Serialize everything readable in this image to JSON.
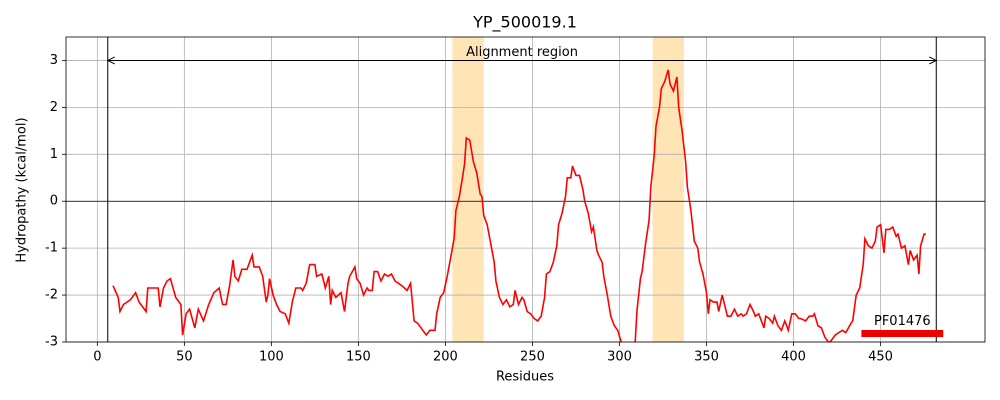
{
  "chart_data": {
    "type": "line",
    "title": "YP_500019.1",
    "xlabel": "Residues",
    "ylabel": "Hydropathy (kcal/mol)",
    "x": [
      9,
      12,
      13,
      15,
      19,
      22,
      24,
      28,
      29,
      35,
      36,
      38,
      40,
      42,
      45,
      48,
      49,
      51,
      53,
      56,
      58,
      61,
      64,
      67,
      70,
      72,
      74,
      76,
      78,
      79,
      81,
      83,
      86,
      89,
      90,
      93,
      95,
      97,
      98,
      99,
      101,
      103,
      105,
      108,
      110,
      112,
      114,
      117,
      118,
      120,
      122,
      125,
      126,
      129,
      131,
      133,
      134,
      135,
      137,
      140,
      142,
      144,
      145,
      148,
      149,
      151,
      153,
      155,
      156,
      158,
      159,
      161,
      163,
      165,
      167,
      169,
      171,
      173,
      175,
      178,
      180,
      182,
      184,
      187,
      189,
      191,
      194,
      195,
      197,
      199,
      201,
      203,
      205,
      206,
      208,
      210,
      211,
      212,
      214,
      216,
      218,
      220,
      221,
      222,
      224,
      226,
      228,
      229,
      231,
      233,
      235,
      237,
      239,
      240,
      242,
      244,
      245,
      247,
      249,
      251,
      253,
      255,
      257,
      258,
      260,
      262,
      264,
      265,
      267,
      269,
      270,
      272,
      273,
      275,
      277,
      279,
      280,
      282,
      284,
      285,
      287,
      288,
      290,
      291,
      293,
      295,
      297,
      299,
      301,
      302,
      306,
      309,
      310,
      312,
      313,
      315,
      317,
      318,
      320,
      321,
      323,
      324,
      326,
      328,
      329,
      331,
      333,
      334,
      336,
      338,
      339,
      341,
      343,
      345,
      346,
      348,
      350,
      351,
      352,
      354,
      356,
      357,
      359,
      361,
      362,
      364,
      366,
      368,
      370,
      371,
      373,
      375,
      377,
      378,
      380,
      383,
      384,
      386,
      388,
      389,
      391,
      393,
      395,
      397,
      399,
      401,
      403,
      404,
      407,
      409,
      411,
      412,
      414,
      416,
      418,
      420,
      421,
      424,
      426,
      428,
      430,
      433,
      434,
      436,
      438,
      440,
      441,
      443,
      445,
      447,
      448,
      450,
      452,
      453,
      455,
      457,
      459,
      460,
      462,
      464,
      466,
      467,
      469,
      471,
      472,
      473,
      475,
      476
    ],
    "values": [
      -1.8,
      -2.05,
      -2.35,
      -2.2,
      -2.1,
      -1.95,
      -2.15,
      -2.35,
      -1.85,
      -1.85,
      -2.25,
      -1.85,
      -1.7,
      -1.65,
      -2.05,
      -2.2,
      -2.85,
      -2.4,
      -2.3,
      -2.7,
      -2.3,
      -2.55,
      -2.2,
      -1.95,
      -1.85,
      -2.2,
      -2.2,
      -1.8,
      -1.25,
      -1.6,
      -1.7,
      -1.45,
      -1.45,
      -1.15,
      -1.4,
      -1.4,
      -1.6,
      -2.15,
      -2.0,
      -1.65,
      -2.0,
      -2.2,
      -2.35,
      -2.4,
      -2.6,
      -2.15,
      -1.85,
      -1.85,
      -1.9,
      -1.75,
      -1.35,
      -1.35,
      -1.6,
      -1.55,
      -1.85,
      -1.6,
      -2.2,
      -1.9,
      -2.05,
      -1.95,
      -2.35,
      -1.75,
      -1.6,
      -1.4,
      -1.65,
      -1.75,
      -2.0,
      -1.85,
      -1.9,
      -1.9,
      -1.5,
      -1.5,
      -1.7,
      -1.55,
      -1.6,
      -1.55,
      -1.7,
      -1.75,
      -1.8,
      -1.9,
      -1.75,
      -2.55,
      -2.6,
      -2.75,
      -2.85,
      -2.75,
      -2.75,
      -2.4,
      -2.05,
      -1.95,
      -1.6,
      -1.2,
      -0.8,
      -0.2,
      0.1,
      0.55,
      0.8,
      1.35,
      1.3,
      0.85,
      0.6,
      0.15,
      0.1,
      -0.3,
      -0.5,
      -0.9,
      -1.3,
      -1.7,
      -2.05,
      -2.2,
      -2.1,
      -2.25,
      -2.2,
      -1.9,
      -2.2,
      -2.05,
      -2.1,
      -2.35,
      -2.4,
      -2.5,
      -2.55,
      -2.45,
      -2.05,
      -1.55,
      -1.5,
      -1.3,
      -0.95,
      -0.5,
      -0.25,
      0.1,
      0.5,
      0.5,
      0.75,
      0.55,
      0.55,
      0.25,
      0.0,
      -0.25,
      -0.65,
      -0.55,
      -1.05,
      -1.15,
      -1.3,
      -1.6,
      -2.0,
      -2.45,
      -2.65,
      -2.75,
      -3.0,
      -3.2,
      -3.3,
      -3.0,
      -2.35,
      -1.65,
      -1.5,
      -0.9,
      -0.4,
      0.3,
      1.0,
      1.6,
      2.0,
      2.4,
      2.55,
      2.8,
      2.5,
      2.35,
      2.65,
      2.0,
      1.5,
      0.85,
      0.3,
      -0.2,
      -0.85,
      -1.0,
      -1.3,
      -1.55,
      -1.95,
      -2.4,
      -2.1,
      -2.15,
      -2.15,
      -2.35,
      -2.0,
      -2.3,
      -2.45,
      -2.45,
      -2.3,
      -2.45,
      -2.4,
      -2.45,
      -2.4,
      -2.2,
      -2.35,
      -2.45,
      -2.4,
      -2.7,
      -2.45,
      -2.5,
      -2.6,
      -2.45,
      -2.65,
      -2.75,
      -2.55,
      -2.75,
      -2.4,
      -2.4,
      -2.5,
      -2.5,
      -2.55,
      -2.45,
      -2.45,
      -2.4,
      -2.65,
      -2.7,
      -2.9,
      -3.0,
      -3.0,
      -2.85,
      -2.8,
      -2.75,
      -2.8,
      -2.6,
      -2.55,
      -2.0,
      -1.85,
      -1.35,
      -0.8,
      -0.95,
      -1.0,
      -0.85,
      -0.55,
      -0.5,
      -1.1,
      -0.6,
      -0.6,
      -0.55,
      -0.75,
      -0.7,
      -1.0,
      -0.95,
      -1.35,
      -1.05,
      -1.25,
      -1.15,
      -1.55,
      -0.95,
      -0.7,
      -0.7
    ],
    "color": "#ff0000",
    "highlight_regions": [
      [
        204,
        222
      ],
      [
        319,
        337
      ]
    ],
    "highlight_color": "#ffe4b5",
    "alignment_region": {
      "label": "Alignment region",
      "start": 6,
      "end": 482,
      "y": 3
    },
    "hline": 0,
    "domain": {
      "label": "PF01476",
      "start": 439,
      "end": 486,
      "y": -2.82,
      "color": "#ee0000"
    },
    "xlim": [
      -18,
      510
    ],
    "ylim": [
      -3,
      3.5
    ],
    "xticks": [
      0,
      50,
      100,
      150,
      200,
      250,
      300,
      350,
      400,
      450
    ],
    "yticks": [
      -3,
      -2,
      -1,
      0,
      1,
      2,
      3
    ],
    "grid": true
  }
}
